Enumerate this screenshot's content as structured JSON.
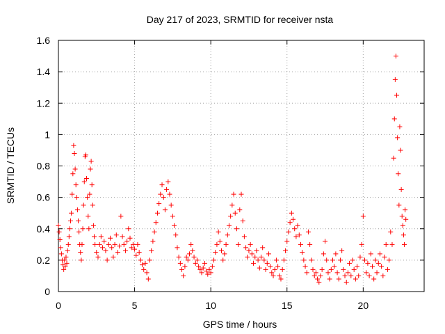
{
  "colors": {
    "series": "#ff0000",
    "axis": "#000000",
    "grid": "#a0a0a0",
    "background": "#ffffff"
  },
  "chart_data": {
    "type": "scatter",
    "title": "Day 217 of 2023, SRMTID for receiver nsta",
    "xlabel": "GPS time / hours",
    "ylabel": "SRMTID / TECUs",
    "xlim": [
      0,
      24
    ],
    "ylim": [
      0,
      1.6
    ],
    "xticks": [
      0,
      5,
      10,
      15,
      20
    ],
    "xtick_labels": [
      "0",
      "5",
      "10",
      "15",
      "20"
    ],
    "yticks": [
      0,
      0.2,
      0.4,
      0.6,
      0.8,
      1.0,
      1.2,
      1.4,
      1.6
    ],
    "ytick_labels": [
      "0",
      "0.2",
      "0.4",
      "0.6",
      "0.8",
      "1",
      "1.2",
      "1.4",
      "1.6"
    ],
    "grid": true,
    "marker": "plus",
    "series": [
      {
        "name": "nsta",
        "points": [
          [
            0.0,
            0.42
          ],
          [
            0.05,
            0.38
          ],
          [
            0.1,
            0.33
          ],
          [
            0.15,
            0.28
          ],
          [
            0.2,
            0.24
          ],
          [
            0.25,
            0.2
          ],
          [
            0.3,
            0.17
          ],
          [
            0.35,
            0.14
          ],
          [
            0.4,
            0.2
          ],
          [
            0.45,
            0.16
          ],
          [
            0.5,
            0.22
          ],
          [
            0.55,
            0.18
          ],
          [
            0.6,
            0.26
          ],
          [
            0.65,
            0.3
          ],
          [
            0.7,
            0.35
          ],
          [
            0.75,
            0.4
          ],
          [
            0.8,
            0.45
          ],
          [
            0.85,
            0.5
          ],
          [
            0.9,
            0.62
          ],
          [
            0.95,
            0.75
          ],
          [
            1.0,
            0.93
          ],
          [
            1.05,
            0.88
          ],
          [
            1.1,
            0.78
          ],
          [
            1.15,
            0.68
          ],
          [
            1.2,
            0.6
          ],
          [
            1.25,
            0.52
          ],
          [
            1.3,
            0.45
          ],
          [
            1.35,
            0.38
          ],
          [
            1.4,
            0.3
          ],
          [
            1.45,
            0.25
          ],
          [
            1.5,
            0.2
          ],
          [
            1.55,
            0.3
          ],
          [
            1.6,
            0.4
          ],
          [
            1.65,
            0.55
          ],
          [
            1.7,
            0.7
          ],
          [
            1.75,
            0.86
          ],
          [
            1.8,
            0.87
          ],
          [
            1.85,
            0.72
          ],
          [
            1.9,
            0.6
          ],
          [
            1.95,
            0.48
          ],
          [
            2.0,
            0.4
          ],
          [
            2.05,
            0.62
          ],
          [
            2.1,
            0.78
          ],
          [
            2.15,
            0.83
          ],
          [
            2.2,
            0.68
          ],
          [
            2.25,
            0.55
          ],
          [
            2.3,
            0.42
          ],
          [
            2.35,
            0.35
          ],
          [
            2.4,
            0.3
          ],
          [
            2.5,
            0.25
          ],
          [
            2.6,
            0.22
          ],
          [
            2.7,
            0.3
          ],
          [
            2.8,
            0.35
          ],
          [
            2.9,
            0.28
          ],
          [
            3.0,
            0.32
          ],
          [
            3.1,
            0.26
          ],
          [
            3.2,
            0.2
          ],
          [
            3.3,
            0.3
          ],
          [
            3.4,
            0.34
          ],
          [
            3.5,
            0.28
          ],
          [
            3.6,
            0.22
          ],
          [
            3.7,
            0.3
          ],
          [
            3.8,
            0.36
          ],
          [
            3.9,
            0.25
          ],
          [
            4.0,
            0.29
          ],
          [
            4.1,
            0.48
          ],
          [
            4.2,
            0.35
          ],
          [
            4.3,
            0.3
          ],
          [
            4.4,
            0.26
          ],
          [
            4.5,
            0.32
          ],
          [
            4.6,
            0.4
          ],
          [
            4.7,
            0.34
          ],
          [
            4.8,
            0.28
          ],
          [
            4.9,
            0.3
          ],
          [
            5.0,
            0.27
          ],
          [
            5.1,
            0.23
          ],
          [
            5.2,
            0.3
          ],
          [
            5.3,
            0.25
          ],
          [
            5.4,
            0.2
          ],
          [
            5.5,
            0.17
          ],
          [
            5.6,
            0.14
          ],
          [
            5.7,
            0.18
          ],
          [
            5.8,
            0.12
          ],
          [
            5.9,
            0.08
          ],
          [
            6.0,
            0.2
          ],
          [
            6.1,
            0.26
          ],
          [
            6.2,
            0.32
          ],
          [
            6.3,
            0.38
          ],
          [
            6.4,
            0.44
          ],
          [
            6.5,
            0.5
          ],
          [
            6.6,
            0.56
          ],
          [
            6.7,
            0.62
          ],
          [
            6.8,
            0.68
          ],
          [
            6.9,
            0.6
          ],
          [
            7.0,
            0.52
          ],
          [
            7.1,
            0.65
          ],
          [
            7.2,
            0.7
          ],
          [
            7.3,
            0.62
          ],
          [
            7.4,
            0.55
          ],
          [
            7.5,
            0.48
          ],
          [
            7.6,
            0.42
          ],
          [
            7.7,
            0.36
          ],
          [
            7.8,
            0.28
          ],
          [
            7.9,
            0.22
          ],
          [
            8.0,
            0.18
          ],
          [
            8.1,
            0.14
          ],
          [
            8.2,
            0.1
          ],
          [
            8.3,
            0.16
          ],
          [
            8.4,
            0.22
          ],
          [
            8.5,
            0.2
          ],
          [
            8.6,
            0.24
          ],
          [
            8.7,
            0.3
          ],
          [
            8.8,
            0.26
          ],
          [
            8.9,
            0.22
          ],
          [
            9.0,
            0.18
          ],
          [
            9.1,
            0.2
          ],
          [
            9.2,
            0.16
          ],
          [
            9.3,
            0.14
          ],
          [
            9.4,
            0.12
          ],
          [
            9.5,
            0.15
          ],
          [
            9.6,
            0.18
          ],
          [
            9.7,
            0.13
          ],
          [
            9.8,
            0.11
          ],
          [
            9.9,
            0.14
          ],
          [
            10.0,
            0.12
          ],
          [
            10.1,
            0.16
          ],
          [
            10.2,
            0.2
          ],
          [
            10.3,
            0.25
          ],
          [
            10.4,
            0.3
          ],
          [
            10.5,
            0.38
          ],
          [
            10.6,
            0.32
          ],
          [
            10.7,
            0.26
          ],
          [
            10.8,
            0.2
          ],
          [
            10.9,
            0.24
          ],
          [
            11.0,
            0.3
          ],
          [
            11.1,
            0.36
          ],
          [
            11.2,
            0.42
          ],
          [
            11.3,
            0.48
          ],
          [
            11.4,
            0.55
          ],
          [
            11.5,
            0.62
          ],
          [
            11.6,
            0.5
          ],
          [
            11.7,
            0.4
          ],
          [
            11.8,
            0.3
          ],
          [
            11.9,
            0.52
          ],
          [
            12.0,
            0.62
          ],
          [
            12.1,
            0.45
          ],
          [
            12.2,
            0.35
          ],
          [
            12.3,
            0.28
          ],
          [
            12.4,
            0.22
          ],
          [
            12.5,
            0.26
          ],
          [
            12.6,
            0.3
          ],
          [
            12.7,
            0.24
          ],
          [
            12.8,
            0.18
          ],
          [
            12.9,
            0.22
          ],
          [
            13.0,
            0.26
          ],
          [
            13.1,
            0.2
          ],
          [
            13.2,
            0.15
          ],
          [
            13.3,
            0.22
          ],
          [
            13.4,
            0.28
          ],
          [
            13.5,
            0.2
          ],
          [
            13.6,
            0.14
          ],
          [
            13.7,
            0.18
          ],
          [
            13.8,
            0.24
          ],
          [
            13.9,
            0.16
          ],
          [
            14.0,
            0.12
          ],
          [
            14.1,
            0.1
          ],
          [
            14.2,
            0.14
          ],
          [
            14.3,
            0.2
          ],
          [
            14.4,
            0.16
          ],
          [
            14.5,
            0.1
          ],
          [
            14.6,
            0.08
          ],
          [
            14.7,
            0.14
          ],
          [
            14.8,
            0.2
          ],
          [
            14.9,
            0.26
          ],
          [
            15.0,
            0.32
          ],
          [
            15.1,
            0.38
          ],
          [
            15.2,
            0.44
          ],
          [
            15.3,
            0.5
          ],
          [
            15.4,
            0.46
          ],
          [
            15.5,
            0.4
          ],
          [
            15.6,
            0.35
          ],
          [
            15.7,
            0.42
          ],
          [
            15.8,
            0.36
          ],
          [
            15.9,
            0.3
          ],
          [
            16.0,
            0.25
          ],
          [
            16.1,
            0.2
          ],
          [
            16.2,
            0.16
          ],
          [
            16.3,
            0.12
          ],
          [
            16.4,
            0.38
          ],
          [
            16.5,
            0.3
          ],
          [
            16.6,
            0.2
          ],
          [
            16.7,
            0.14
          ],
          [
            16.8,
            0.1
          ],
          [
            16.9,
            0.12
          ],
          [
            17.0,
            0.08
          ],
          [
            17.1,
            0.06
          ],
          [
            17.2,
            0.1
          ],
          [
            17.3,
            0.14
          ],
          [
            17.4,
            0.24
          ],
          [
            17.5,
            0.32
          ],
          [
            17.6,
            0.2
          ],
          [
            17.7,
            0.12
          ],
          [
            17.8,
            0.08
          ],
          [
            17.9,
            0.14
          ],
          [
            18.0,
            0.2
          ],
          [
            18.1,
            0.16
          ],
          [
            18.2,
            0.24
          ],
          [
            18.3,
            0.12
          ],
          [
            18.4,
            0.08
          ],
          [
            18.5,
            0.2
          ],
          [
            18.6,
            0.26
          ],
          [
            18.7,
            0.14
          ],
          [
            18.8,
            0.1
          ],
          [
            18.9,
            0.06
          ],
          [
            19.0,
            0.12
          ],
          [
            19.1,
            0.18
          ],
          [
            19.2,
            0.1
          ],
          [
            19.3,
            0.2
          ],
          [
            19.4,
            0.14
          ],
          [
            19.5,
            0.08
          ],
          [
            19.6,
            0.16
          ],
          [
            19.7,
            0.1
          ],
          [
            19.8,
            0.22
          ],
          [
            19.9,
            0.3
          ],
          [
            20.0,
            0.48
          ],
          [
            20.1,
            0.2
          ],
          [
            20.2,
            0.12
          ],
          [
            20.3,
            0.18
          ],
          [
            20.4,
            0.1
          ],
          [
            20.5,
            0.24
          ],
          [
            20.6,
            0.16
          ],
          [
            20.7,
            0.08
          ],
          [
            20.8,
            0.2
          ],
          [
            20.9,
            0.12
          ],
          [
            21.0,
            0.18
          ],
          [
            21.1,
            0.24
          ],
          [
            21.2,
            0.16
          ],
          [
            21.3,
            0.1
          ],
          [
            21.4,
            0.22
          ],
          [
            21.5,
            0.3
          ],
          [
            21.6,
            0.14
          ],
          [
            21.7,
            0.2
          ],
          [
            21.8,
            0.38
          ],
          [
            21.9,
            0.3
          ],
          [
            22.0,
            0.85
          ],
          [
            22.05,
            1.1
          ],
          [
            22.1,
            1.35
          ],
          [
            22.15,
            1.5
          ],
          [
            22.2,
            1.25
          ],
          [
            22.25,
            0.98
          ],
          [
            22.3,
            0.75
          ],
          [
            22.35,
            0.55
          ],
          [
            22.4,
            1.05
          ],
          [
            22.45,
            0.9
          ],
          [
            22.5,
            0.65
          ],
          [
            22.55,
            0.48
          ],
          [
            22.6,
            0.42
          ],
          [
            22.65,
            0.36
          ],
          [
            22.7,
            0.3
          ],
          [
            22.75,
            0.52
          ],
          [
            22.8,
            0.46
          ]
        ]
      }
    ]
  }
}
